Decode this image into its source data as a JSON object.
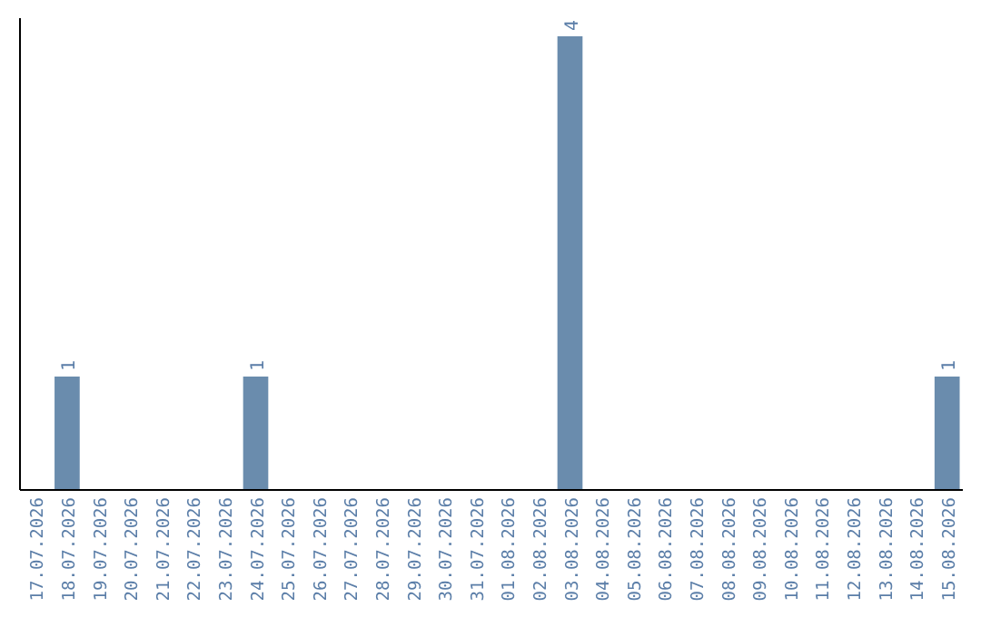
{
  "chart_data": {
    "type": "bar",
    "categories": [
      "17.07.2026",
      "18.07.2026",
      "19.07.2026",
      "20.07.2026",
      "21.07.2026",
      "22.07.2026",
      "23.07.2026",
      "24.07.2026",
      "25.07.2026",
      "26.07.2026",
      "27.07.2026",
      "28.07.2026",
      "29.07.2026",
      "30.07.2026",
      "31.07.2026",
      "01.08.2026",
      "02.08.2026",
      "03.08.2026",
      "04.08.2026",
      "05.08.2026",
      "06.08.2026",
      "07.08.2026",
      "08.08.2026",
      "09.08.2026",
      "10.08.2026",
      "11.08.2026",
      "12.08.2026",
      "13.08.2026",
      "14.08.2026",
      "15.08.2026"
    ],
    "values": [
      0,
      1,
      0,
      0,
      0,
      0,
      0,
      1,
      0,
      0,
      0,
      0,
      0,
      0,
      0,
      0,
      0,
      4,
      0,
      0,
      0,
      0,
      0,
      0,
      0,
      0,
      0,
      0,
      0,
      1
    ],
    "value_labels": [
      null,
      "1",
      null,
      null,
      null,
      null,
      null,
      "1",
      null,
      null,
      null,
      null,
      null,
      null,
      null,
      null,
      null,
      "4",
      null,
      null,
      null,
      null,
      null,
      null,
      null,
      null,
      null,
      null,
      null,
      "1"
    ],
    "color": "#6a8cad",
    "tick_labels": "x"
  }
}
